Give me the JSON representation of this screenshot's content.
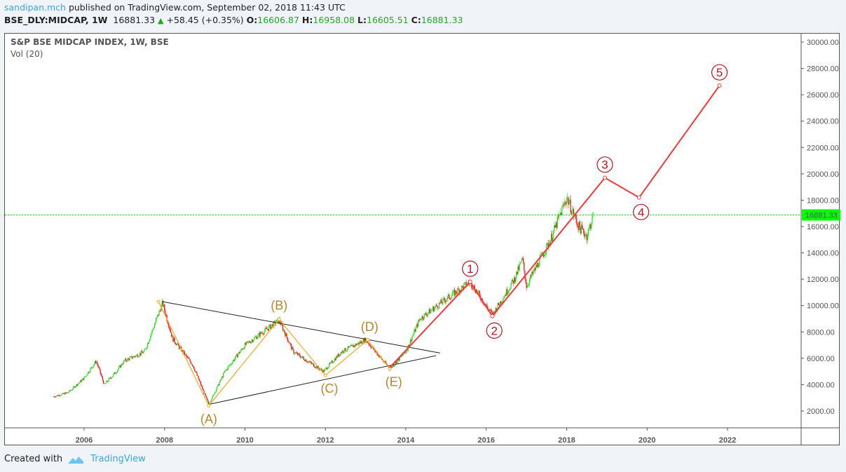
{
  "header": {
    "user": "sandipan.mch",
    "published": "published on TradingView.com, September 02, 2018 11:43 UTC",
    "symbol": "BSE_DLY:MIDCAP, 1W",
    "last": "16881.33",
    "change": "+58.45 (+0.35%)",
    "o_label": "O:",
    "o": "16606.87",
    "h_label": "H:",
    "h": "16958.08",
    "l_label": "L:",
    "l": "16605.51",
    "c_label": "C:",
    "c": "16881.33"
  },
  "legend": {
    "title": "S&P BSE MIDCAP INDEX, 1W, BSE",
    "volume": "Vol (20)"
  },
  "footer": {
    "created_with": "Created with",
    "brand": "TradingView"
  },
  "colors": {
    "up": "#22dd22",
    "down": "#ee1111",
    "wave_orange": "#f5a623",
    "wave_label_orange": "#b8862b",
    "impulse_red": "#f03a3a",
    "circle_label": "#c0141e",
    "last_price_bg": "#00ff00"
  },
  "chart_data": {
    "type": "candlestick",
    "title": "S&P BSE MIDCAP INDEX, 1W, BSE",
    "ylim": [
      2000,
      30000
    ],
    "xlim": [
      2004.8,
      2023.8
    ],
    "y_ticks": [
      "2000.00",
      "4000.00",
      "6000.00",
      "8000.00",
      "10000.00",
      "12000.00",
      "14000.00",
      "16000.00",
      "18000.00",
      "20000.00",
      "22000.00",
      "24000.00",
      "26000.00",
      "28000.00",
      "30000.00"
    ],
    "x_ticks": [
      "2006",
      "2008",
      "2010",
      "2012",
      "2014",
      "2016",
      "2018",
      "2020",
      "2022"
    ],
    "last_price": 16881.33,
    "last_price_label": "16881.33",
    "price_path": [
      [
        2005.25,
        3100
      ],
      [
        2005.6,
        3400
      ],
      [
        2006.0,
        4500
      ],
      [
        2006.3,
        5800
      ],
      [
        2006.5,
        4000
      ],
      [
        2006.8,
        5000
      ],
      [
        2007.0,
        5800
      ],
      [
        2007.5,
        6500
      ],
      [
        2007.95,
        10200
      ],
      [
        2008.2,
        7500
      ],
      [
        2008.7,
        5500
      ],
      [
        2009.1,
        2500
      ],
      [
        2009.5,
        5000
      ],
      [
        2010.0,
        7000
      ],
      [
        2010.85,
        8900
      ],
      [
        2011.2,
        6500
      ],
      [
        2011.95,
        5000
      ],
      [
        2012.4,
        6500
      ],
      [
        2013.0,
        7400
      ],
      [
        2013.6,
        5200
      ],
      [
        2014.0,
        6500
      ],
      [
        2014.35,
        9000
      ],
      [
        2015.0,
        10500
      ],
      [
        2015.6,
        11800
      ],
      [
        2016.15,
        9300
      ],
      [
        2016.7,
        12000
      ],
      [
        2016.9,
        13500
      ],
      [
        2017.0,
        11500
      ],
      [
        2017.6,
        15000
      ],
      [
        2018.0,
        18200
      ],
      [
        2018.3,
        16000
      ],
      [
        2018.5,
        15300
      ],
      [
        2018.67,
        16881
      ]
    ],
    "triangle_lines": [
      [
        [
          2007.95,
          10300
        ],
        [
          2014.85,
          6400
        ]
      ],
      [
        [
          2009.1,
          2500
        ],
        [
          2014.75,
          6200
        ]
      ]
    ],
    "abcde_wave": [
      [
        2007.85,
        10300
      ],
      [
        2009.1,
        2400
      ],
      [
        2010.85,
        8950
      ],
      [
        2012.0,
        4700
      ],
      [
        2013.05,
        7400
      ],
      [
        2013.6,
        5200
      ]
    ],
    "abcde_labels": [
      {
        "text": "(A)",
        "x": 2009.1,
        "y": 1400
      },
      {
        "text": "(B)",
        "x": 2010.85,
        "y": 10000
      },
      {
        "text": "(C)",
        "x": 2012.1,
        "y": 3700
      },
      {
        "text": "(D)",
        "x": 2013.1,
        "y": 8400
      },
      {
        "text": "(E)",
        "x": 2013.7,
        "y": 4200
      }
    ],
    "impulse_wave": [
      [
        2013.6,
        5300
      ],
      [
        2015.6,
        11800
      ],
      [
        2016.15,
        9200
      ],
      [
        2018.95,
        19700
      ],
      [
        2019.8,
        18200
      ],
      [
        2021.8,
        26700
      ]
    ],
    "impulse_labels": [
      {
        "text": "1",
        "x": 2015.6,
        "y": 12800
      },
      {
        "text": "2",
        "x": 2016.2,
        "y": 8100
      },
      {
        "text": "3",
        "x": 2018.95,
        "y": 20700
      },
      {
        "text": "4",
        "x": 2019.85,
        "y": 17100
      },
      {
        "text": "5",
        "x": 2021.8,
        "y": 27700
      }
    ]
  }
}
